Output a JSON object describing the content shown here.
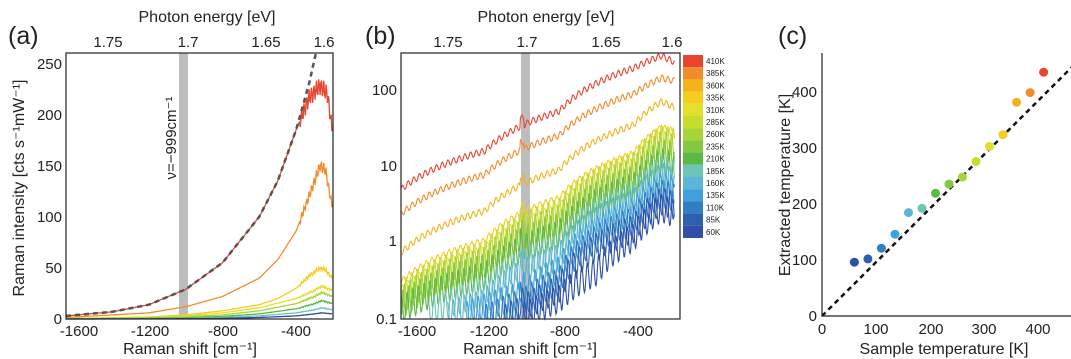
{
  "chart_data": [
    {
      "panel": "(a)",
      "type": "line",
      "xlabel": "Raman shift [cm⁻¹]",
      "x2label": "Photon energy [eV]",
      "ylabel": "Raman intensity [cts s⁻¹mW⁻¹]",
      "xlim": [
        -1650,
        -200
      ],
      "ylim": [
        0,
        260
      ],
      "xticks": [
        "-1600",
        "-1200",
        "-800",
        "-400"
      ],
      "x2ticks": [
        "1.75",
        "1.7",
        "1.65",
        "1.6"
      ],
      "yticks": [
        "0",
        "50",
        "100",
        "150",
        "200",
        "250"
      ],
      "annotation": "ν=−999cm⁻¹",
      "marked_shift": -999,
      "fit": {
        "style": "dashed",
        "color": "#555555",
        "x": [
          -1650,
          -1400,
          -1200,
          -1000,
          -800,
          -600,
          -500,
          -400,
          -330,
          -290
        ],
        "y": [
          3,
          7,
          14,
          29,
          55,
          100,
          135,
          185,
          230,
          262
        ]
      },
      "series": [
        {
          "color": "#e8442e",
          "x": [
            -1650,
            -1400,
            -1200,
            -1000,
            -800,
            -600,
            -500,
            -400,
            -330,
            -270,
            -230,
            -205
          ],
          "y": [
            3,
            7,
            14,
            29,
            55,
            100,
            135,
            185,
            216,
            228,
            220,
            185
          ]
        },
        {
          "color": "#f28c2a",
          "x": [
            -1650,
            -1200,
            -1000,
            -800,
            -600,
            -500,
            -400,
            -330,
            -270,
            -240,
            -205
          ],
          "y": [
            1.5,
            6,
            12,
            22,
            40,
            58,
            86,
            120,
            150,
            145,
            110
          ]
        },
        {
          "color": "#f4cd1f",
          "x": [
            -1650,
            -1200,
            -1000,
            -800,
            -600,
            -500,
            -400,
            -330,
            -270,
            -240,
            -205
          ],
          "y": [
            0.5,
            2,
            4,
            8,
            14,
            20,
            30,
            42,
            50,
            48,
            40
          ]
        },
        {
          "color": "#e2e02a",
          "x": [
            -1650,
            -1200,
            -1000,
            -800,
            -600,
            -400,
            -300,
            -260,
            -205
          ],
          "y": [
            0.3,
            1.5,
            3,
            6,
            11,
            20,
            28,
            32,
            28
          ]
        },
        {
          "color": "#a8d43a",
          "x": [
            -1650,
            -1200,
            -1000,
            -800,
            -600,
            -400,
            -300,
            -260,
            -205
          ],
          "y": [
            0.2,
            1,
            2,
            4,
            8,
            15,
            22,
            26,
            22
          ]
        },
        {
          "color": "#5ab845",
          "x": [
            -1650,
            -1200,
            -1000,
            -800,
            -600,
            -400,
            -300,
            -260,
            -205
          ],
          "y": [
            0.1,
            0.6,
            1.2,
            2.5,
            5,
            10,
            15,
            18,
            15
          ]
        },
        {
          "color": "#6cc5b8",
          "x": [
            -1650,
            -1200,
            -1000,
            -800,
            -600,
            -400,
            -300,
            -260,
            -205
          ],
          "y": [
            0.05,
            0.3,
            0.7,
            1.5,
            3,
            6,
            9,
            11,
            9
          ]
        },
        {
          "color": "#2f4fa8",
          "x": [
            -1650,
            -1200,
            -1000,
            -800,
            -600,
            -400,
            -300,
            -260,
            -205
          ],
          "y": [
            0.02,
            0.1,
            0.3,
            0.6,
            1.5,
            3,
            5,
            6,
            5
          ]
        }
      ]
    },
    {
      "panel": "(b)",
      "type": "line",
      "xlabel": "Raman shift [cm⁻¹]",
      "x2label": "Photon energy [eV]",
      "yscale": "log",
      "xlim": [
        -1650,
        -150
      ],
      "ylim": [
        0.1,
        250
      ],
      "xticks": [
        "-1600",
        "-1200",
        "-800",
        "-400"
      ],
      "x2ticks": [
        "1.75",
        "1.7",
        "1.65",
        "1.6"
      ],
      "yticks": [
        "0.1",
        "1",
        "10",
        "100"
      ],
      "marked_shift": -999,
      "legend": [
        "410K",
        "385K",
        "360K",
        "335K",
        "310K",
        "285K",
        "260K",
        "235K",
        "210K",
        "185K",
        "160K",
        "135K",
        "110K",
        "85K",
        "60K"
      ],
      "legend_colors": [
        "#e8442e",
        "#f28c2a",
        "#f6b21c",
        "#f4cd1f",
        "#e2e02a",
        "#c8db2f",
        "#a8d43a",
        "#83c93d",
        "#5ab845",
        "#6cc5b8",
        "#5fb4da",
        "#3fa0dd",
        "#2f7fc4",
        "#2f5fb0",
        "#2f4fa8"
      ],
      "series": [
        {
          "color": "#e8442e",
          "x": [
            -1650,
            -1200,
            -800,
            -400,
            -250,
            -180
          ],
          "y": [
            4.5,
            14,
            45,
            160,
            230,
            190
          ]
        },
        {
          "color": "#f28c2a",
          "x": [
            -1650,
            -1200,
            -800,
            -400,
            -250,
            -180
          ],
          "y": [
            2.2,
            7,
            22,
            75,
            120,
            110
          ]
        },
        {
          "color": "#f6b21c",
          "x": [
            -1650,
            -1200,
            -800,
            -400,
            -250,
            -180
          ],
          "y": [
            0.7,
            2.4,
            8,
            30,
            60,
            50
          ]
        },
        {
          "color": "#f4cd1f",
          "x": [
            -1650,
            -1200,
            -800,
            -400,
            -250,
            -180
          ],
          "y": [
            0.3,
            1.0,
            3.5,
            13,
            28,
            25
          ]
        },
        {
          "color": "#e2e02a",
          "x": [
            -1650,
            -1200,
            -800,
            -400,
            -250,
            -180
          ],
          "y": [
            0.24,
            0.8,
            2.8,
            11,
            24,
            22
          ]
        },
        {
          "color": "#c8db2f",
          "x": [
            -1650,
            -1200,
            -800,
            -400,
            -250,
            -180
          ],
          "y": [
            0.2,
            0.65,
            2.3,
            9,
            20,
            18
          ]
        },
        {
          "color": "#a8d43a",
          "x": [
            -1650,
            -1200,
            -800,
            -400,
            -250,
            -180
          ],
          "y": [
            0.17,
            0.55,
            1.9,
            7.5,
            17,
            15
          ]
        },
        {
          "color": "#83c93d",
          "x": [
            -1650,
            -1200,
            -800,
            -400,
            -250,
            -180
          ],
          "y": [
            0.15,
            0.45,
            1.5,
            6,
            13,
            12
          ]
        },
        {
          "color": "#5ab845",
          "x": [
            -1650,
            -1200,
            -800,
            -400,
            -250,
            -180
          ],
          "y": [
            0.13,
            0.35,
            1.2,
            4.8,
            10,
            9
          ]
        },
        {
          "color": "#6cc5b8",
          "x": [
            -1500,
            -1200,
            -800,
            -400,
            -250,
            -180
          ],
          "y": [
            0.12,
            0.22,
            0.8,
            3.8,
            8,
            7
          ]
        },
        {
          "color": "#5fb4da",
          "x": [
            -1400,
            -1200,
            -800,
            -400,
            -250,
            -180
          ],
          "y": [
            0.11,
            0.16,
            0.6,
            3.0,
            6.5,
            5.5
          ]
        },
        {
          "color": "#3fa0dd",
          "x": [
            -1300,
            -1000,
            -800,
            -400,
            -250,
            -180
          ],
          "y": [
            0.11,
            0.2,
            0.42,
            2.3,
            5,
            4.5
          ]
        },
        {
          "color": "#2f7fc4",
          "x": [
            -1200,
            -1000,
            -800,
            -400,
            -250,
            -180
          ],
          "y": [
            0.1,
            0.16,
            0.3,
            1.8,
            4,
            3.5
          ]
        },
        {
          "color": "#2f5fb0",
          "x": [
            -1100,
            -1000,
            -800,
            -400,
            -250,
            -180
          ],
          "y": [
            0.1,
            0.13,
            0.24,
            1.4,
            3.2,
            2.8
          ]
        },
        {
          "color": "#2f4fa8",
          "x": [
            -1000,
            -800,
            -600,
            -400,
            -250,
            -180
          ],
          "y": [
            0.1,
            0.18,
            0.4,
            1.1,
            2.6,
            2.2
          ]
        }
      ]
    },
    {
      "panel": "(c)",
      "type": "scatter",
      "xlabel": "Sample temperature [K]",
      "ylabel": "Extracted temperature [K]",
      "xlim": [
        0,
        470
      ],
      "ylim": [
        0,
        470
      ],
      "xticks": [
        "0",
        "100",
        "200",
        "300",
        "400"
      ],
      "yticks": [
        "0",
        "100",
        "200",
        "300",
        "400"
      ],
      "reference_line": {
        "style": "dashed",
        "x": [
          0,
          470
        ],
        "y": [
          0,
          470
        ]
      },
      "points": [
        {
          "x": 60,
          "y": 100,
          "color": "#2f4fa8"
        },
        {
          "x": 85,
          "y": 106,
          "color": "#2f5fb0"
        },
        {
          "x": 110,
          "y": 126,
          "color": "#2f7fc4"
        },
        {
          "x": 135,
          "y": 152,
          "color": "#3fa0dd"
        },
        {
          "x": 160,
          "y": 192,
          "color": "#5fb4da"
        },
        {
          "x": 185,
          "y": 200,
          "color": "#6cc5b8"
        },
        {
          "x": 210,
          "y": 228,
          "color": "#5ab845"
        },
        {
          "x": 235,
          "y": 245,
          "color": "#83c93d"
        },
        {
          "x": 260,
          "y": 258,
          "color": "#a8d43a"
        },
        {
          "x": 285,
          "y": 287,
          "color": "#c8db2f"
        },
        {
          "x": 310,
          "y": 315,
          "color": "#e2e02a"
        },
        {
          "x": 335,
          "y": 337,
          "color": "#f4cd1f"
        },
        {
          "x": 360,
          "y": 397,
          "color": "#f6b21c"
        },
        {
          "x": 385,
          "y": 415,
          "color": "#f28c2a"
        },
        {
          "x": 410,
          "y": 453,
          "color": "#e8442e"
        }
      ]
    }
  ]
}
